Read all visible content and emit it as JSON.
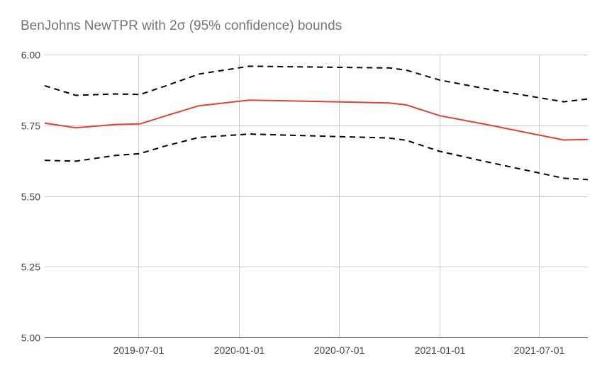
{
  "chart_data": {
    "type": "line",
    "title": "BenJohns NewTPR with 2σ (95% confidence) bounds",
    "xlabel": "",
    "ylabel": "",
    "ylim": [
      5.0,
      6.0
    ],
    "y_ticks": [
      {
        "value": 5.0,
        "label": "5.00"
      },
      {
        "value": 5.25,
        "label": "5.25"
      },
      {
        "value": 5.5,
        "label": "5.50"
      },
      {
        "value": 5.75,
        "label": "5.75"
      },
      {
        "value": 6.0,
        "label": "6.00"
      }
    ],
    "xlim": [
      "2019-01-12",
      "2021-09-28"
    ],
    "x_ticks": [
      {
        "value": "2019-07-01",
        "label": "2019-07-01"
      },
      {
        "value": "2020-01-01",
        "label": "2020-01-01"
      },
      {
        "value": "2020-07-01",
        "label": "2020-07-01"
      },
      {
        "value": "2021-01-01",
        "label": "2021-01-01"
      },
      {
        "value": "2021-07-01",
        "label": "2021-07-01"
      }
    ],
    "grid": true,
    "legend": "none",
    "series": [
      {
        "color": "#db4437",
        "style": "solid",
        "points": [
          {
            "x": "2019-01-12",
            "y": 5.758
          },
          {
            "x": "2019-03-10",
            "y": 5.741
          },
          {
            "x": "2019-05-20",
            "y": 5.753
          },
          {
            "x": "2019-07-05",
            "y": 5.755
          },
          {
            "x": "2019-08-20",
            "y": 5.783
          },
          {
            "x": "2019-10-20",
            "y": 5.819
          },
          {
            "x": "2020-01-20",
            "y": 5.839
          },
          {
            "x": "2020-10-01",
            "y": 5.829
          },
          {
            "x": "2020-11-01",
            "y": 5.822
          },
          {
            "x": "2021-01-01",
            "y": 5.784
          },
          {
            "x": "2021-04-01",
            "y": 5.751
          },
          {
            "x": "2021-08-15",
            "y": 5.698
          },
          {
            "x": "2021-09-28",
            "y": 5.7
          }
        ]
      },
      {
        "color": "#000000",
        "style": "dashed",
        "points": [
          {
            "x": "2019-01-12",
            "y": 5.89
          },
          {
            "x": "2019-03-10",
            "y": 5.856
          },
          {
            "x": "2019-05-20",
            "y": 5.861
          },
          {
            "x": "2019-07-05",
            "y": 5.859
          },
          {
            "x": "2019-08-20",
            "y": 5.889
          },
          {
            "x": "2019-10-20",
            "y": 5.931
          },
          {
            "x": "2020-01-20",
            "y": 5.959
          },
          {
            "x": "2020-07-01",
            "y": 5.955
          },
          {
            "x": "2020-10-01",
            "y": 5.953
          },
          {
            "x": "2020-11-01",
            "y": 5.945
          },
          {
            "x": "2021-01-01",
            "y": 5.91
          },
          {
            "x": "2021-04-01",
            "y": 5.877
          },
          {
            "x": "2021-08-15",
            "y": 5.833
          },
          {
            "x": "2021-09-28",
            "y": 5.843
          }
        ]
      },
      {
        "color": "#000000",
        "style": "dashed",
        "points": [
          {
            "x": "2019-01-12",
            "y": 5.626
          },
          {
            "x": "2019-03-10",
            "y": 5.623
          },
          {
            "x": "2019-05-20",
            "y": 5.643
          },
          {
            "x": "2019-07-05",
            "y": 5.65
          },
          {
            "x": "2019-08-20",
            "y": 5.677
          },
          {
            "x": "2019-10-20",
            "y": 5.707
          },
          {
            "x": "2020-01-20",
            "y": 5.719
          },
          {
            "x": "2020-07-01",
            "y": 5.71
          },
          {
            "x": "2020-10-01",
            "y": 5.705
          },
          {
            "x": "2020-11-01",
            "y": 5.697
          },
          {
            "x": "2021-01-01",
            "y": 5.658
          },
          {
            "x": "2021-04-01",
            "y": 5.619
          },
          {
            "x": "2021-08-15",
            "y": 5.563
          },
          {
            "x": "2021-09-28",
            "y": 5.558
          }
        ]
      }
    ]
  }
}
